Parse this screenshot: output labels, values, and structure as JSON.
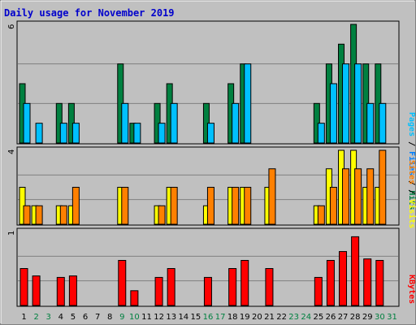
{
  "title": "Daily usage for November 2019",
  "colors": {
    "hits": "#008040",
    "files": "#00c0ff",
    "pages": "#00c0ff",
    "visits": "#ffff00",
    "sites": "#ff8000",
    "kbytes": "#ff0000",
    "weekday": "#000000",
    "weekend": "#008040",
    "title": "#0000cc"
  },
  "side_labels": {
    "top": {
      "pages": "Pages",
      "sep1": " / ",
      "files": "Files",
      "sep2": " / ",
      "hits": "Hits"
    },
    "middle": {
      "sites": "Sites",
      "sep": " / ",
      "visits": "Visits"
    },
    "bottom": {
      "kbytes": "KBytes"
    }
  },
  "chart_data": [
    {
      "type": "bar",
      "panel": "hits_files_pages",
      "ymax_label": "6",
      "ylim": [
        0,
        6
      ],
      "categories": [
        "1",
        "2",
        "3",
        "4",
        "5",
        "6",
        "7",
        "8",
        "9",
        "10",
        "11",
        "12",
        "13",
        "14",
        "15",
        "16",
        "17",
        "18",
        "19",
        "20",
        "21",
        "22",
        "23",
        "24",
        "25",
        "26",
        "27",
        "28",
        "29",
        "30",
        "31"
      ],
      "weekend": [
        false,
        true,
        true,
        false,
        false,
        false,
        false,
        false,
        true,
        true,
        false,
        false,
        false,
        false,
        false,
        true,
        true,
        false,
        false,
        false,
        false,
        false,
        true,
        true,
        false,
        false,
        false,
        false,
        false,
        true,
        true
      ],
      "series": [
        {
          "name": "Hits",
          "values": [
            3,
            0,
            0,
            2,
            2,
            0,
            0,
            0,
            4,
            1,
            0,
            2,
            3,
            0,
            0,
            2,
            0,
            3,
            4,
            0,
            0,
            0,
            0,
            0,
            2,
            4,
            5,
            6,
            4,
            4,
            0
          ]
        },
        {
          "name": "Files",
          "values": [
            2,
            1,
            0,
            1,
            1,
            0,
            0,
            0,
            2,
            1,
            0,
            1,
            2,
            0,
            0,
            1,
            0,
            2,
            4,
            0,
            0,
            0,
            0,
            0,
            1,
            3,
            4,
            4,
            2,
            2,
            0
          ]
        },
        {
          "name": "Pages",
          "values": [
            2,
            1,
            0,
            1,
            1,
            0,
            0,
            0,
            2,
            1,
            0,
            1,
            2,
            0,
            0,
            1,
            0,
            2,
            4,
            0,
            0,
            0,
            0,
            0,
            1,
            3,
            4,
            4,
            2,
            2,
            0
          ]
        }
      ]
    },
    {
      "type": "bar",
      "panel": "visits_sites",
      "ymax_label": "4",
      "ylim": [
        0,
        4
      ],
      "categories": [
        "1",
        "2",
        "3",
        "4",
        "5",
        "6",
        "7",
        "8",
        "9",
        "10",
        "11",
        "12",
        "13",
        "14",
        "15",
        "16",
        "17",
        "18",
        "19",
        "20",
        "21",
        "22",
        "23",
        "24",
        "25",
        "26",
        "27",
        "28",
        "29",
        "30",
        "31"
      ],
      "series": [
        {
          "name": "Visits",
          "values": [
            2,
            1,
            0,
            1,
            1,
            0,
            0,
            0,
            2,
            0,
            0,
            1,
            2,
            0,
            0,
            1,
            0,
            2,
            2,
            0,
            2,
            0,
            0,
            0,
            1,
            3,
            4,
            4,
            2,
            2,
            0
          ]
        },
        {
          "name": "Sites",
          "values": [
            1,
            1,
            0,
            1,
            2,
            0,
            0,
            0,
            2,
            0,
            0,
            1,
            2,
            0,
            0,
            2,
            0,
            2,
            2,
            0,
            3,
            0,
            0,
            0,
            1,
            2,
            3,
            3,
            3,
            4,
            0
          ]
        }
      ]
    },
    {
      "type": "bar",
      "panel": "kbytes",
      "ymax_label": "1",
      "ylim": [
        0,
        1
      ],
      "categories": [
        "1",
        "2",
        "3",
        "4",
        "5",
        "6",
        "7",
        "8",
        "9",
        "10",
        "11",
        "12",
        "13",
        "14",
        "15",
        "16",
        "17",
        "18",
        "19",
        "20",
        "21",
        "22",
        "23",
        "24",
        "25",
        "26",
        "27",
        "28",
        "29",
        "30",
        "31"
      ],
      "series": [
        {
          "name": "KBytes",
          "values": [
            0.5,
            0.4,
            0,
            0.38,
            0.4,
            0,
            0,
            0,
            0.61,
            0.2,
            0,
            0.38,
            0.5,
            0,
            0,
            0.38,
            0,
            0.5,
            0.61,
            0,
            0.5,
            0,
            0,
            0,
            0.38,
            0.61,
            0.73,
            0.93,
            0.63,
            0.61,
            0
          ]
        }
      ]
    }
  ]
}
